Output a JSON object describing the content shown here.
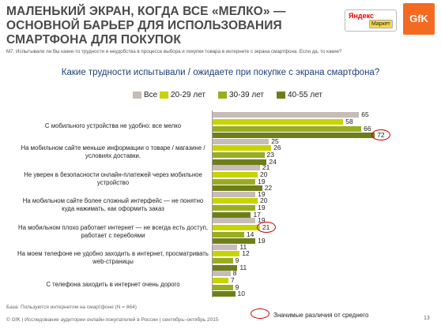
{
  "title": "МАЛЕНЬКИЙ ЭКРАН, КОГДА ВСЕ «МЕЛКО» — ОСНОВНОЙ БАРЬЕР ДЛЯ ИСПОЛЬЗОВАНИЯ СМАРТФОНА ДЛЯ ПОКУПОК",
  "logos": {
    "yandex": "Яндекс",
    "market": "Маркет",
    "gfk": "GfK"
  },
  "question_note": "M7. Испытывали ли Вы какие-то трудности и неудобства в процессе выбора и покупки товара в интернете с экрана смартфона. Если да, то какие?",
  "footer": {
    "base": "База: Пользуются интернетом на смартфоне (N = 864)",
    "copyright": "© GfK | Исследование аудитории онлайн-покупателей в России | сентябрь–октябрь 2015",
    "page": "13",
    "significance_legend": "Значимые различия от среднего"
  },
  "colors": {
    "all": "#c7bcb7",
    "g20": "#c8d400",
    "g30": "#9aad1e",
    "g40": "#6e7f1a",
    "highlight": "#cc0000"
  },
  "chart_data": {
    "type": "bar",
    "orientation": "horizontal",
    "title": "Какие трудности испытывали / ожидаете при покупке с экрана смартфона?",
    "legend_position": "top",
    "categories": [
      "С мобильного устройства не удобно: все мелко",
      "На мобильном сайте меньше информации о товаре / магазине / условиях доставки.",
      "Не уверен в безопасности онлайн-платежей через мобильное устройство",
      "На мобильном сайте более сложный интерфейс — не понятно куда нажимать, как оформить заказ",
      "На мобильном плохо работает интернет — не всегда есть доступ, работает с перебоями",
      "На моем телефоне не удобно заходить в интернет, просматривать web-страницы",
      "С телефона заходить в интернет очень дорого"
    ],
    "series": [
      {
        "name": "Все",
        "values": [
          65,
          25,
          21,
          19,
          19,
          11,
          8
        ]
      },
      {
        "name": "20-29 лет",
        "values": [
          58,
          26,
          20,
          20,
          21,
          12,
          7
        ]
      },
      {
        "name": "30-39 лет",
        "values": [
          66,
          23,
          19,
          19,
          14,
          9,
          9
        ]
      },
      {
        "name": "40-55 лет",
        "values": [
          72,
          24,
          22,
          17,
          19,
          11,
          10
        ]
      }
    ],
    "significant": [
      [
        0,
        3
      ],
      [
        4,
        1
      ]
    ]
  }
}
